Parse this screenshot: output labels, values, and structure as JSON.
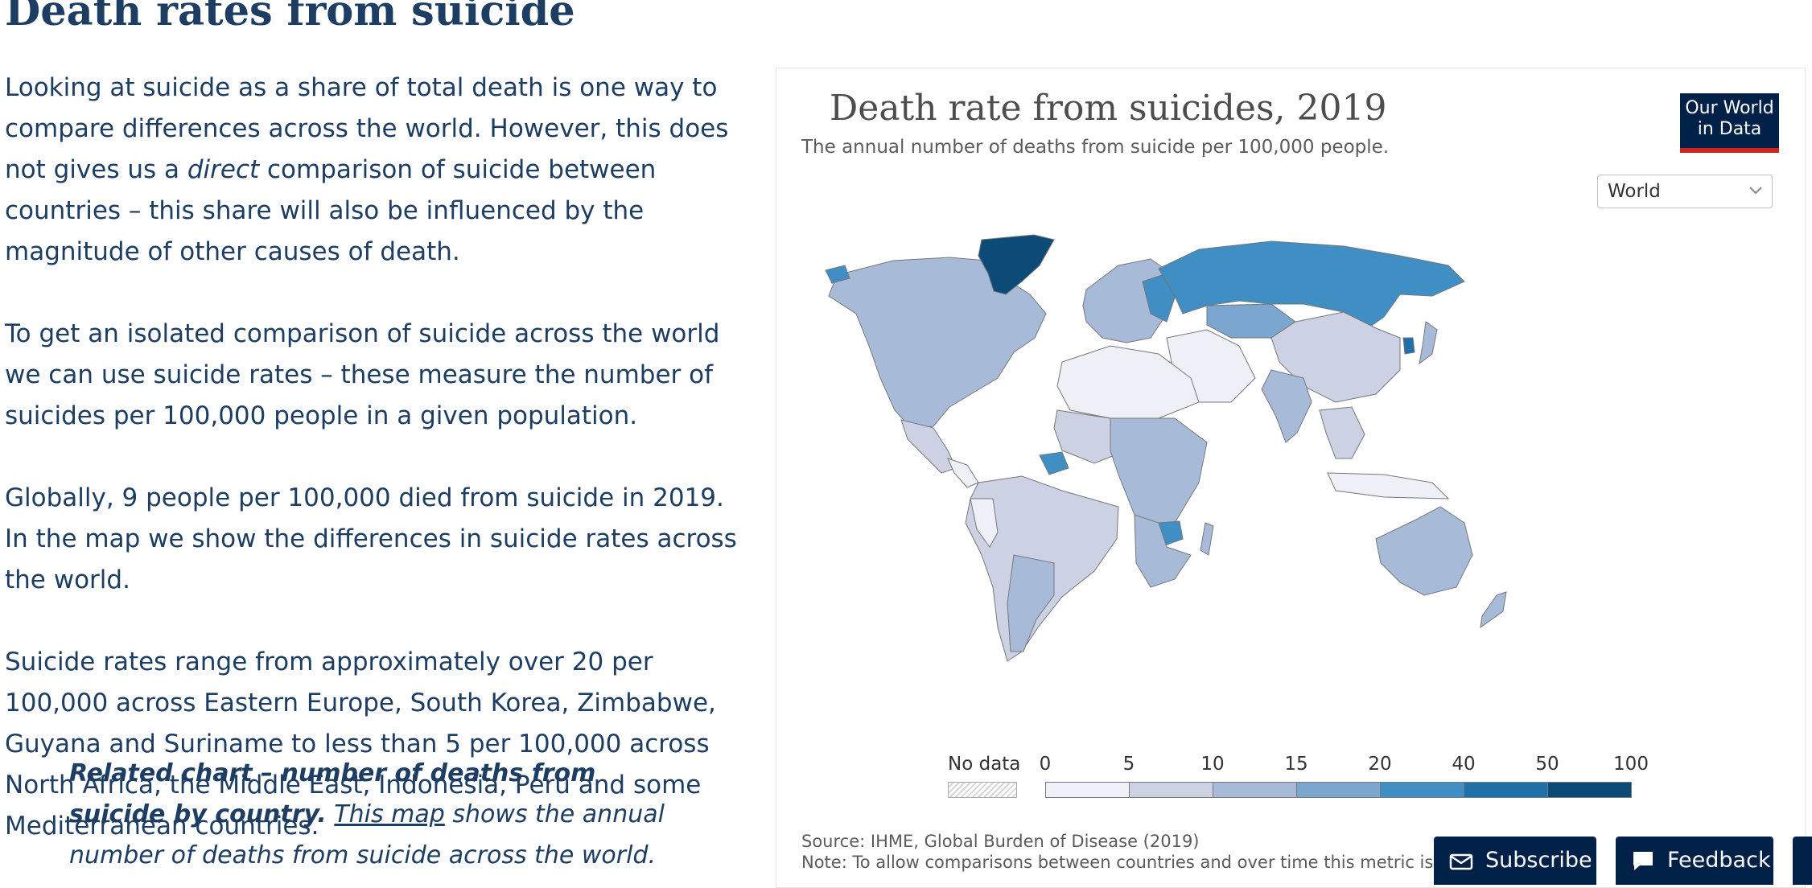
{
  "article": {
    "title": "Death rates from suicide",
    "p1_a": "Looking at suicide as a share of total death is one way to compare differences across the world. However, this does not gives us a ",
    "p1_em": "direct",
    "p1_b": " comparison of suicide between countries – this share will also be influenced by the magnitude of other causes of death.",
    "p2": "To get an isolated comparison of suicide across the world we can use suicide rates – these measure the number of suicides per 100,000 people in a given population.",
    "p3": "Globally, 9 people per 100,000 died from suicide in 2019. In the map we show the differences in suicide rates across the world.",
    "p4": "Suicide rates range from approximately over 20 per 100,000 across Eastern Europe, South Korea, Zimbabwe, Guyana and Suriname to less than 5 per 100,000 across North Africa, the Middle East, Indonesia, Peru and some Mediterranean countries.",
    "callout_bold": "Related chart – number of deaths from suicide by country.",
    "callout_link": "This map",
    "callout_rest": " shows the annual number of deaths from suicide across the world."
  },
  "chart_data": {
    "type": "heatmap",
    "title": "Death rate from suicides, 2019",
    "subtitle": "The annual number of deaths from suicide per 100,000 people.",
    "logo_line1": "Our World",
    "logo_line2": "in Data",
    "region_selector": "World",
    "no_data_label": "No data",
    "legend_ticks": [
      "0",
      "5",
      "10",
      "15",
      "20",
      "40",
      "50",
      "100"
    ],
    "bins": [
      {
        "from": 0,
        "to": 5,
        "color": "#eff0f7"
      },
      {
        "from": 5,
        "to": 10,
        "color": "#ccd1e4"
      },
      {
        "from": 10,
        "to": 15,
        "color": "#a7bbd9"
      },
      {
        "from": 15,
        "to": 20,
        "color": "#7aa6cf"
      },
      {
        "from": 20,
        "to": 40,
        "color": "#3f8ec4"
      },
      {
        "from": 40,
        "to": 50,
        "color": "#1f6fa8"
      },
      {
        "from": 50,
        "to": 100,
        "color": "#0c4b78"
      }
    ],
    "source": "Source: IHME, Global Burden of Disease (2019)",
    "note": "Note: To allow comparisons between countries and over time this metric is age-st"
  },
  "buttons": {
    "subscribe": "Subscribe",
    "feedback": "Feedback"
  },
  "colors": {
    "text": "#1d3d63",
    "logo_bg": "#002147",
    "logo_accent": "#ce261e"
  }
}
